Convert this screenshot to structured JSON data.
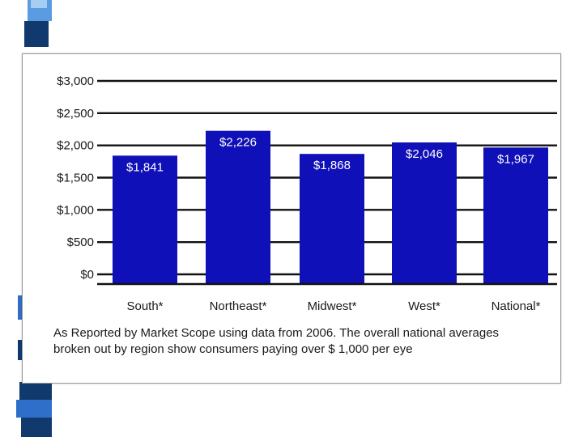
{
  "chart_data": {
    "type": "bar",
    "categories": [
      "South*",
      "Northeast*",
      "Midwest*",
      "West*",
      "National*"
    ],
    "values": [
      1841,
      2226,
      1868,
      2046,
      1967
    ],
    "value_labels": [
      "$1,841",
      "$2,226",
      "$1,868",
      "$2,046",
      "$1,967"
    ],
    "y_ticks": [
      0,
      500,
      1000,
      1500,
      2000,
      2500,
      3000
    ],
    "y_tick_labels": [
      "$0",
      "$500",
      "$1,000",
      "$1,500",
      "$2,000",
      "$2,500",
      "$3,000"
    ],
    "ylim": [
      0,
      3000
    ],
    "grid": true,
    "bar_color": "#1010b8",
    "title": "",
    "xlabel": "",
    "ylabel": ""
  },
  "caption": {
    "line1": "As Reported by Market Scope using data from 2006. The overall national averages",
    "line2": "broken out by region show consumers paying over $ 1,000 per eye"
  },
  "colors": {
    "strip_dark": "#103a6e",
    "strip_mid": "#2f6fc9",
    "strip_light": "#6aa9e8"
  }
}
